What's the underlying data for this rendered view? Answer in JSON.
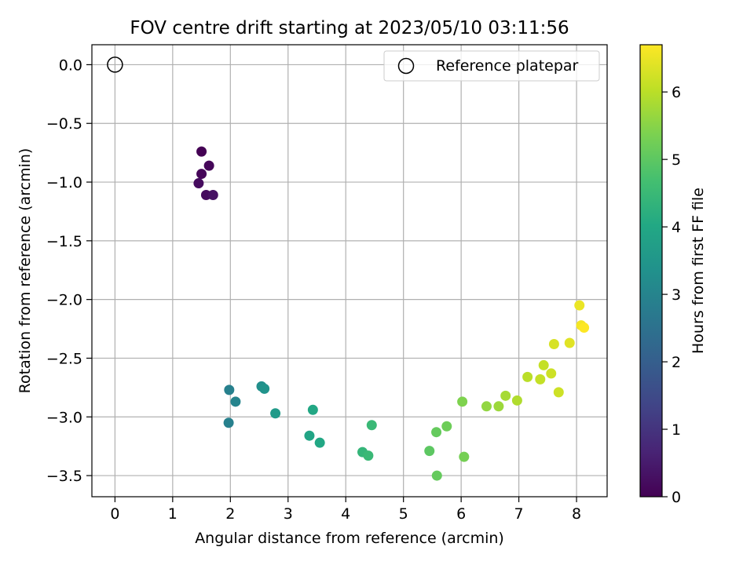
{
  "chart_data": {
    "type": "scatter",
    "title": "FOV centre drift starting at 2023/05/10 03:11:56",
    "xlabel": "Angular distance from reference (arcmin)",
    "ylabel": "Rotation from reference (arcmin)",
    "xlim": [
      -0.4,
      8.53
    ],
    "ylim": [
      -3.68,
      0.17
    ],
    "xticks": [
      0,
      1,
      2,
      3,
      4,
      5,
      6,
      7,
      8
    ],
    "yticks": [
      0.0,
      -0.5,
      -1.0,
      -1.5,
      -2.0,
      -2.5,
      -3.0,
      -3.5
    ],
    "xtick_labels": [
      "0",
      "1",
      "2",
      "3",
      "4",
      "5",
      "6",
      "7",
      "8"
    ],
    "ytick_labels": [
      "0.0",
      "−0.5",
      "−1.0",
      "−1.5",
      "−2.0",
      "−2.5",
      "−3.0",
      "−3.5"
    ],
    "grid": true,
    "legend": {
      "position": "top-right",
      "entries": [
        {
          "label": "Reference platepar",
          "marker": "open-circle"
        }
      ]
    },
    "reference_point": {
      "x": 0,
      "y": 0
    },
    "colorbar": {
      "label": "Hours from first FF file",
      "range": [
        0,
        6.7
      ],
      "ticks": [
        0,
        1,
        2,
        3,
        4,
        5,
        6
      ],
      "tick_labels": [
        "0",
        "1",
        "2",
        "3",
        "4",
        "5",
        "6"
      ],
      "colormap": "viridis"
    },
    "series": [
      {
        "points": [
          {
            "x": 1.5,
            "y": -0.74,
            "hours": 0.0
          },
          {
            "x": 1.63,
            "y": -0.86,
            "hours": 0.1
          },
          {
            "x": 1.5,
            "y": -0.93,
            "hours": 0.1
          },
          {
            "x": 1.45,
            "y": -1.01,
            "hours": 0.2
          },
          {
            "x": 1.58,
            "y": -1.11,
            "hours": 0.2
          },
          {
            "x": 1.7,
            "y": -1.11,
            "hours": 0.3
          },
          {
            "x": 1.98,
            "y": -2.77,
            "hours": 2.9
          },
          {
            "x": 1.97,
            "y": -3.05,
            "hours": 2.9
          },
          {
            "x": 2.09,
            "y": -2.87,
            "hours": 3.0
          },
          {
            "x": 2.54,
            "y": -2.74,
            "hours": 3.3
          },
          {
            "x": 2.59,
            "y": -2.76,
            "hours": 3.4
          },
          {
            "x": 2.78,
            "y": -2.97,
            "hours": 3.6
          },
          {
            "x": 3.37,
            "y": -3.16,
            "hours": 3.9
          },
          {
            "x": 3.43,
            "y": -2.94,
            "hours": 4.0
          },
          {
            "x": 3.55,
            "y": -3.22,
            "hours": 4.0
          },
          {
            "x": 4.29,
            "y": -3.3,
            "hours": 4.4
          },
          {
            "x": 4.39,
            "y": -3.33,
            "hours": 4.5
          },
          {
            "x": 4.45,
            "y": -3.07,
            "hours": 4.5
          },
          {
            "x": 5.45,
            "y": -3.29,
            "hours": 5.0
          },
          {
            "x": 5.57,
            "y": -3.13,
            "hours": 5.1
          },
          {
            "x": 5.58,
            "y": -3.5,
            "hours": 5.1
          },
          {
            "x": 5.75,
            "y": -3.08,
            "hours": 5.2
          },
          {
            "x": 6.02,
            "y": -2.87,
            "hours": 5.4
          },
          {
            "x": 6.05,
            "y": -3.34,
            "hours": 5.3
          },
          {
            "x": 6.44,
            "y": -2.91,
            "hours": 5.6
          },
          {
            "x": 6.65,
            "y": -2.91,
            "hours": 5.7
          },
          {
            "x": 6.77,
            "y": -2.82,
            "hours": 5.8
          },
          {
            "x": 6.97,
            "y": -2.86,
            "hours": 5.9
          },
          {
            "x": 7.15,
            "y": -2.66,
            "hours": 6.0
          },
          {
            "x": 7.37,
            "y": -2.68,
            "hours": 6.1
          },
          {
            "x": 7.43,
            "y": -2.56,
            "hours": 6.1
          },
          {
            "x": 7.56,
            "y": -2.63,
            "hours": 6.2
          },
          {
            "x": 7.69,
            "y": -2.79,
            "hours": 6.2
          },
          {
            "x": 7.61,
            "y": -2.38,
            "hours": 6.3
          },
          {
            "x": 7.88,
            "y": -2.37,
            "hours": 6.4
          },
          {
            "x": 8.05,
            "y": -2.05,
            "hours": 6.5
          },
          {
            "x": 8.08,
            "y": -2.22,
            "hours": 6.6
          },
          {
            "x": 8.13,
            "y": -2.24,
            "hours": 6.7
          }
        ]
      }
    ]
  }
}
